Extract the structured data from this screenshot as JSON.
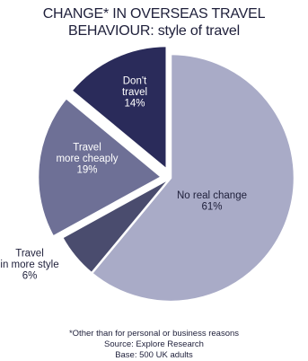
{
  "header": {
    "title_line1": "CHANGE* IN OVERSEAS TRAVEL",
    "title_line2": "BEHAVIOUR: style of travel"
  },
  "chart_data": {
    "type": "pie",
    "title": "CHANGE* IN OVERSEAS TRAVEL BEHAVIOUR: style of travel",
    "slices": [
      {
        "label": [
          "No real change"
        ],
        "value": 61,
        "value_label": "61%",
        "color": "#a9abc7",
        "text_color": "#1e1f3a",
        "exploded": false
      },
      {
        "label": [
          "Travel",
          "in more style"
        ],
        "value": 6,
        "value_label": "6%",
        "color": "#4a4c6e",
        "text_color": "#1e1f3a",
        "exploded": false
      },
      {
        "label": [
          "Travel",
          "more cheaply"
        ],
        "value": 19,
        "value_label": "19%",
        "color": "#6e7096",
        "text_color": "#ffffff",
        "exploded": true
      },
      {
        "label": [
          "Don't",
          "travel"
        ],
        "value": 14,
        "value_label": "14%",
        "color": "#2a2b5a",
        "text_color": "#ffffff",
        "exploded": true
      }
    ],
    "legend": "none",
    "slice_border_color": "#ffffff"
  },
  "footer": {
    "note": "*Other than for personal or business reasons",
    "source": "Source: Explore Research",
    "base": "Base: 500 UK adults"
  }
}
